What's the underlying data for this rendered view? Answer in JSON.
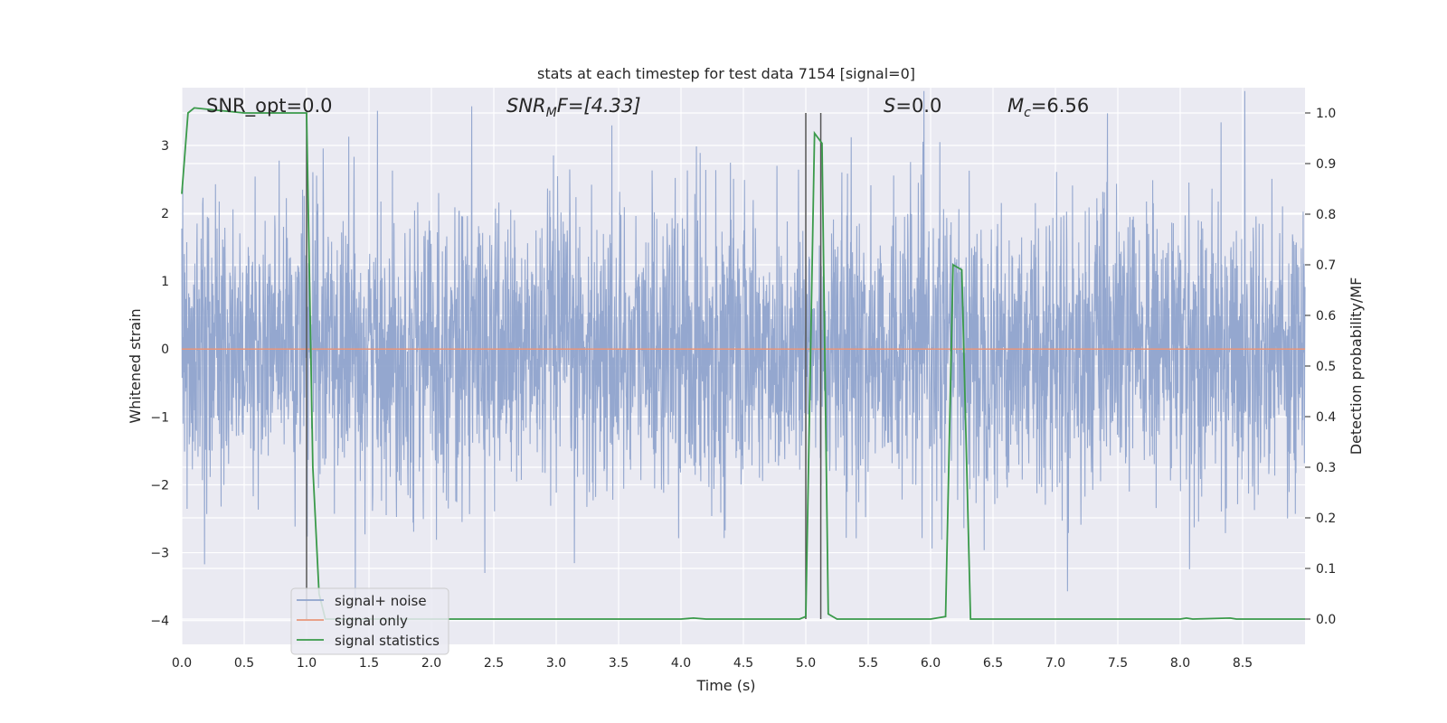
{
  "chart_data": {
    "type": "line",
    "title": "stats at each timestep for test data 7154 [signal=0]",
    "xlabel": "Time (s)",
    "ylabel_left": "Whitened strain",
    "ylabel_right": "Detection probability/MF",
    "xlim": [
      0,
      9
    ],
    "ylim_left": [
      -4.35,
      3.85
    ],
    "ylim_right": [
      -0.05,
      1.05
    ],
    "x_ticks": [
      "0.0",
      "0.5",
      "1.0",
      "1.5",
      "2.0",
      "2.5",
      "3.0",
      "3.5",
      "4.0",
      "4.5",
      "5.0",
      "5.5",
      "6.0",
      "6.5",
      "7.0",
      "7.5",
      "8.0",
      "8.5"
    ],
    "x_tick_values": [
      0,
      0.5,
      1,
      1.5,
      2,
      2.5,
      3,
      3.5,
      4,
      4.5,
      5,
      5.5,
      6,
      6.5,
      7,
      7.5,
      8,
      8.5
    ],
    "y_left_ticks": [
      "−4",
      "−3",
      "−2",
      "−1",
      "0",
      "1",
      "2",
      "3"
    ],
    "y_left_tick_values": [
      -4,
      -3,
      -2,
      -1,
      0,
      1,
      2,
      3
    ],
    "y_right_ticks": [
      "0.0",
      "0.1",
      "0.2",
      "0.3",
      "0.4",
      "0.5",
      "0.6",
      "0.7",
      "0.8",
      "0.9",
      "1.0"
    ],
    "y_right_tick_values": [
      0,
      0.1,
      0.2,
      0.3,
      0.4,
      0.5,
      0.6,
      0.7,
      0.8,
      0.9,
      1.0
    ],
    "grid": true,
    "legend_position": "lower-left",
    "annotations": {
      "snr_opt": "SNR_opt=0.0",
      "snr_mf_base": "SNR",
      "snr_mf_sub": "M",
      "snr_mf_rest": "F=[4.33]",
      "s_italic": "S",
      "s_rest": "=0.0",
      "mc_base": "M",
      "mc_sub": "c",
      "mc_rest": "=6.56"
    },
    "vertical_lines_x": [
      1.0,
      5.0,
      5.12
    ],
    "series": [
      {
        "name": "signal+ noise",
        "color": "#8fa3cc",
        "noise_sigma": 1.0,
        "x_range": [
          0,
          9
        ]
      },
      {
        "name": "signal only",
        "color": "#e8967a",
        "x": [
          0,
          9
        ],
        "y": [
          0,
          0
        ]
      },
      {
        "name": "signal statistics",
        "color": "#3a9a4a",
        "axis": "right",
        "x": [
          0,
          0.05,
          0.1,
          0.5,
          0.95,
          1.0,
          1.05,
          1.1,
          1.15,
          1.2,
          1.5,
          2.0,
          3.0,
          4.0,
          4.1,
          4.2,
          4.5,
          4.95,
          5.0,
          5.07,
          5.13,
          5.18,
          5.25,
          5.5,
          6.0,
          6.12,
          6.18,
          6.25,
          6.32,
          6.4,
          7.0,
          8.0,
          8.05,
          8.1,
          8.4,
          8.45,
          8.5,
          9.0
        ],
        "y": [
          0.84,
          1.0,
          1.01,
          1.0,
          1.0,
          1.0,
          0.3,
          0.05,
          0.0,
          0.0,
          0.0,
          0.0,
          0.0,
          0.0,
          0.002,
          0.0,
          0.0,
          0.0,
          0.005,
          0.96,
          0.94,
          0.01,
          0.0,
          0.0,
          0.0,
          0.005,
          0.7,
          0.69,
          0.0,
          0.0,
          0.0,
          0.0,
          0.002,
          0.0,
          0.002,
          0.0,
          0.0,
          0.0
        ]
      }
    ]
  },
  "legend": {
    "items": [
      {
        "label": "signal+ noise",
        "color": "#8fa3cc"
      },
      {
        "label": "signal only",
        "color": "#e8967a"
      },
      {
        "label": "signal statistics",
        "color": "#3a9a4a"
      }
    ]
  },
  "colors": {
    "plot_background": "#eaeaf2",
    "grid": "#ffffff",
    "vertical_lines": "#555555"
  }
}
